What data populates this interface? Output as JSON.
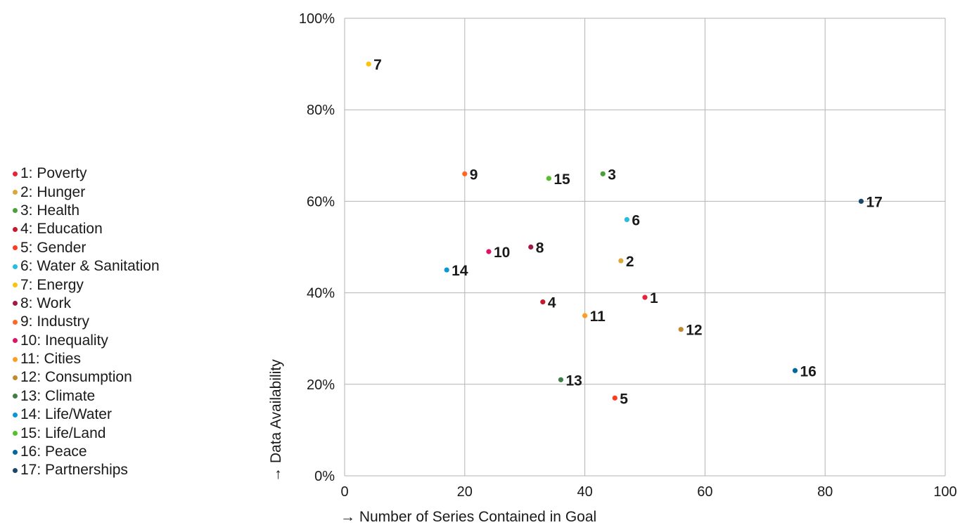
{
  "chart_data": {
    "type": "scatter",
    "xlabel": "→  Number of Series Contained in Goal",
    "ylabel": "→  Data Availability",
    "xlim": [
      0,
      100
    ],
    "ylim": [
      0,
      100
    ],
    "x_ticks": [
      0,
      20,
      40,
      60,
      80,
      100
    ],
    "y_ticks": [
      0,
      20,
      40,
      60,
      80,
      100
    ],
    "x_tick_labels": [
      "0",
      "20",
      "40",
      "60",
      "80",
      "100"
    ],
    "y_tick_labels": [
      "0%",
      "20%",
      "40%",
      "60%",
      "80%",
      "100%"
    ],
    "grid": true,
    "legend_position": "left",
    "points": [
      {
        "label": "1",
        "legend": "1: Poverty",
        "x": 50,
        "y": 39,
        "color": "#e5243b"
      },
      {
        "label": "2",
        "legend": "2: Hunger",
        "x": 46,
        "y": 47,
        "color": "#dda63a"
      },
      {
        "label": "3",
        "legend": "3: Health",
        "x": 43,
        "y": 66,
        "color": "#4c9f38"
      },
      {
        "label": "4",
        "legend": "4: Education",
        "x": 33,
        "y": 38,
        "color": "#c5192d"
      },
      {
        "label": "5",
        "legend": "5: Gender",
        "x": 45,
        "y": 17,
        "color": "#ff3a21"
      },
      {
        "label": "6",
        "legend": "6: Water & Sanitation",
        "x": 47,
        "y": 56,
        "color": "#26bde2"
      },
      {
        "label": "7",
        "legend": "7: Energy",
        "x": 4,
        "y": 90,
        "color": "#fcc30b"
      },
      {
        "label": "8",
        "legend": "8: Work",
        "x": 31,
        "y": 50,
        "color": "#a21942"
      },
      {
        "label": "9",
        "legend": "9: Industry",
        "x": 20,
        "y": 66,
        "color": "#fd6925"
      },
      {
        "label": "10",
        "legend": "10: Inequality",
        "x": 24,
        "y": 49,
        "color": "#dd1367"
      },
      {
        "label": "11",
        "legend": "11: Cities",
        "x": 40,
        "y": 35,
        "color": "#fd9d24"
      },
      {
        "label": "12",
        "legend": "12: Consumption",
        "x": 56,
        "y": 32,
        "color": "#bf8b2e"
      },
      {
        "label": "13",
        "legend": "13: Climate",
        "x": 36,
        "y": 21,
        "color": "#3f7e44"
      },
      {
        "label": "14",
        "legend": "14: Life/Water",
        "x": 17,
        "y": 45,
        "color": "#0a97d9"
      },
      {
        "label": "15",
        "legend": "15: Life/Land",
        "x": 34,
        "y": 65,
        "color": "#56c02b"
      },
      {
        "label": "16",
        "legend": "16: Peace",
        "x": 75,
        "y": 23,
        "color": "#00689d"
      },
      {
        "label": "17",
        "legend": "17: Partnerships",
        "x": 86,
        "y": 60,
        "color": "#19486a"
      }
    ]
  }
}
